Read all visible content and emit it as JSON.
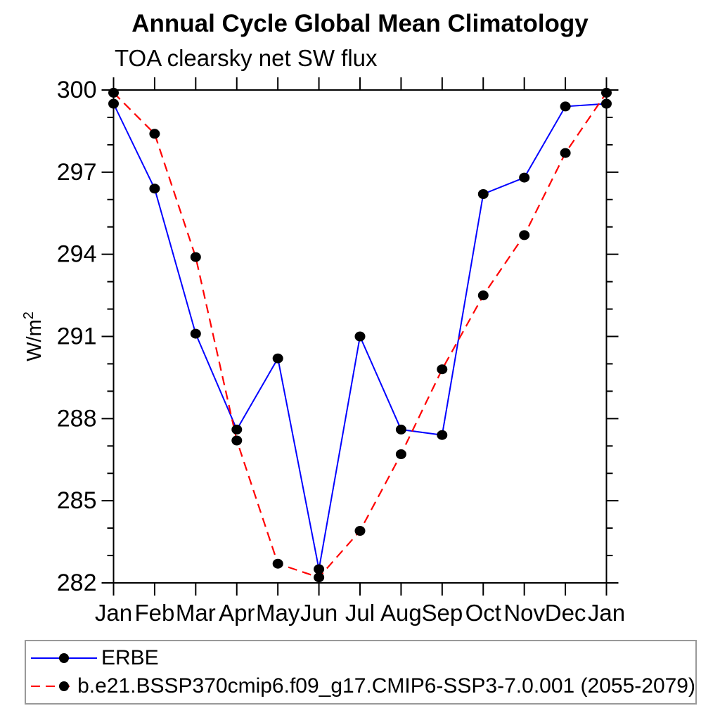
{
  "title": "Annual Cycle Global Mean Climatology",
  "subtitle": "TOA clearsky net SW flux",
  "labels": {
    "ylabel_base": "W/m",
    "ylabel_sup": "2"
  },
  "chart_data": {
    "type": "line",
    "title": "Annual Cycle Global Mean Climatology",
    "subtitle": "TOA clearsky net SW flux",
    "ylabel": "W/m^2",
    "xlabel": "",
    "categories": [
      "Jan",
      "Feb",
      "Mar",
      "Apr",
      "May",
      "Jun",
      "Jul",
      "Aug",
      "Sep",
      "Oct",
      "Nov",
      "Dec",
      "Jan"
    ],
    "series": [
      {
        "name": "ERBE",
        "color": "#0000ff",
        "style": "solid",
        "marker": "filled-circle",
        "values": [
          299.5,
          296.4,
          291.1,
          287.6,
          290.2,
          282.5,
          291.0,
          287.6,
          287.4,
          296.2,
          296.8,
          299.4,
          299.5
        ]
      },
      {
        "name": "b.e21.BSSP370cmip6.f09_g17.CMIP6-SSP3-7.0.001 (2055-2079)",
        "color": "#ff0000",
        "style": "dashed",
        "marker": "filled-circle",
        "values": [
          299.9,
          298.4,
          293.9,
          287.2,
          282.7,
          282.2,
          283.9,
          286.7,
          289.8,
          292.5,
          294.7,
          297.7,
          299.9
        ]
      }
    ],
    "ylim": [
      282,
      300
    ],
    "yticks_major": [
      282,
      285,
      288,
      291,
      294,
      297,
      300
    ],
    "ytick_minor_step": 1,
    "marker_color": "#000000",
    "axis_color": "#000000",
    "grid": false,
    "legend_position": "bottom"
  }
}
